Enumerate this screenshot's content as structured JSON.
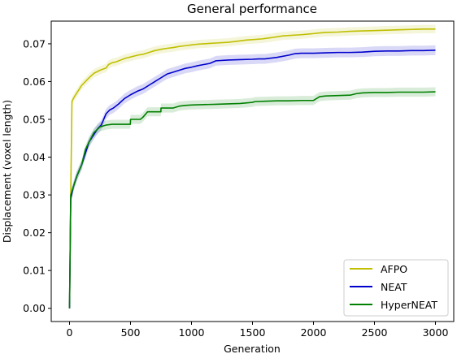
{
  "chart_data": {
    "type": "line",
    "title": "General performance",
    "xlabel": "Generation",
    "ylabel": "Displacement (voxel length)",
    "xlim": [
      -150,
      3150
    ],
    "ylim": [
      -0.0035,
      0.076
    ],
    "xticks": [
      0,
      500,
      1000,
      1500,
      2000,
      2500,
      3000
    ],
    "xtick_labels": [
      "0",
      "500",
      "1000",
      "1500",
      "2000",
      "2500",
      "3000"
    ],
    "yticks": [
      0.0,
      0.01,
      0.02,
      0.03,
      0.04,
      0.05,
      0.06,
      0.07
    ],
    "ytick_labels": [
      "0.00",
      "0.01",
      "0.02",
      "0.03",
      "0.04",
      "0.05",
      "0.06",
      "0.07"
    ],
    "grid": false,
    "legend_position": "lower-right",
    "series": [
      {
        "name": "AFPO",
        "color": "#bfbf00",
        "band": 0.0011,
        "x": [
          0,
          10,
          20,
          40,
          60,
          80,
          100,
          130,
          160,
          200,
          250,
          300,
          320,
          350,
          380,
          420,
          460,
          500,
          560,
          600,
          650,
          700,
          760,
          800,
          850,
          900,
          950,
          1000,
          1050,
          1100,
          1150,
          1200,
          1300,
          1380,
          1450,
          1500,
          1580,
          1650,
          1750,
          1800,
          1900,
          2000,
          2060,
          2100,
          2200,
          2300,
          2400,
          2500,
          2600,
          2700,
          2800,
          2900,
          3000
        ],
        "y": [
          0.0,
          0.03,
          0.0548,
          0.056,
          0.057,
          0.058,
          0.059,
          0.06,
          0.061,
          0.0622,
          0.063,
          0.0636,
          0.0645,
          0.065,
          0.0652,
          0.0657,
          0.0662,
          0.0665,
          0.067,
          0.0672,
          0.0677,
          0.0682,
          0.0686,
          0.0688,
          0.069,
          0.0693,
          0.0695,
          0.0697,
          0.0699,
          0.07,
          0.0701,
          0.0702,
          0.0704,
          0.0707,
          0.071,
          0.0711,
          0.0713,
          0.0716,
          0.0721,
          0.0722,
          0.0724,
          0.0727,
          0.0729,
          0.073,
          0.0731,
          0.0733,
          0.0734,
          0.0735,
          0.0736,
          0.0737,
          0.0738,
          0.0739,
          0.0739
        ]
      },
      {
        "name": "NEAT",
        "color": "#0000cc",
        "band": 0.0013,
        "x": [
          0,
          10,
          30,
          60,
          100,
          130,
          160,
          200,
          230,
          260,
          280,
          300,
          330,
          360,
          400,
          450,
          500,
          560,
          600,
          650,
          700,
          760,
          800,
          850,
          900,
          950,
          1000,
          1050,
          1100,
          1150,
          1200,
          1300,
          1400,
          1500,
          1550,
          1600,
          1700,
          1800,
          1850,
          1900,
          2000,
          2100,
          2200,
          2300,
          2400,
          2500,
          2600,
          2700,
          2800,
          2900,
          3000
        ],
        "y": [
          0.0,
          0.029,
          0.032,
          0.035,
          0.038,
          0.041,
          0.044,
          0.046,
          0.0475,
          0.0485,
          0.05,
          0.0515,
          0.0525,
          0.053,
          0.054,
          0.0555,
          0.0565,
          0.0575,
          0.058,
          0.059,
          0.06,
          0.0612,
          0.062,
          0.0625,
          0.063,
          0.0635,
          0.0638,
          0.0642,
          0.0645,
          0.0648,
          0.0655,
          0.0657,
          0.0658,
          0.0659,
          0.066,
          0.066,
          0.0664,
          0.067,
          0.0674,
          0.0675,
          0.0675,
          0.0676,
          0.0677,
          0.0677,
          0.0678,
          0.068,
          0.0681,
          0.0681,
          0.0682,
          0.0682,
          0.0683
        ]
      },
      {
        "name": "HyperNEAT",
        "color": "#008000",
        "band": 0.0012,
        "x": [
          0,
          10,
          30,
          60,
          100,
          130,
          160,
          200,
          250,
          300,
          350,
          400,
          450,
          499,
          500,
          580,
          600,
          640,
          700,
          749,
          750,
          850,
          900,
          950,
          1000,
          1100,
          1200,
          1300,
          1400,
          1500,
          1520,
          1600,
          1700,
          1800,
          1900,
          2000,
          2050,
          2100,
          2200,
          2300,
          2350,
          2400,
          2500,
          2600,
          2700,
          2800,
          2900,
          3000
        ],
        "y": [
          0.0,
          0.03,
          0.032,
          0.035,
          0.038,
          0.042,
          0.044,
          0.0465,
          0.048,
          0.0485,
          0.0487,
          0.0487,
          0.0487,
          0.0487,
          0.05,
          0.05,
          0.0505,
          0.052,
          0.052,
          0.052,
          0.053,
          0.053,
          0.0535,
          0.0537,
          0.0538,
          0.0539,
          0.054,
          0.0541,
          0.0542,
          0.0545,
          0.0547,
          0.0548,
          0.0549,
          0.0549,
          0.055,
          0.055,
          0.056,
          0.0562,
          0.0563,
          0.0564,
          0.0568,
          0.057,
          0.0571,
          0.0571,
          0.0572,
          0.0572,
          0.0572,
          0.0573
        ]
      }
    ]
  }
}
